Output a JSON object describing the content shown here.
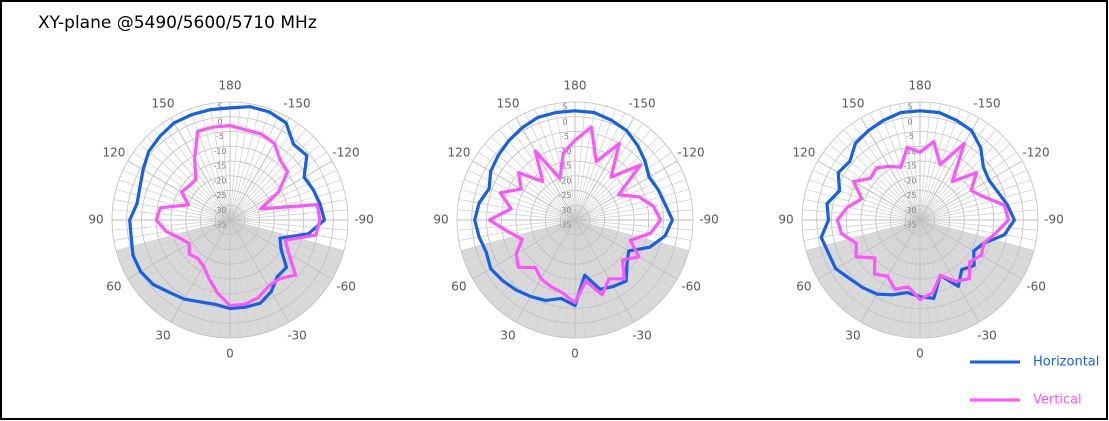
{
  "title": "XY-plane @5490/5600/5710 MHz",
  "chart_data": [
    {
      "type": "polar",
      "theta": [
        -180,
        -170,
        -160,
        -150,
        -140,
        -130,
        -120,
        -110,
        -100,
        -90,
        -80,
        -70,
        -60,
        -50,
        -40,
        -30,
        -20,
        -10,
        0,
        10,
        20,
        30,
        40,
        50,
        60,
        70,
        80,
        90,
        100,
        110,
        120,
        130,
        140,
        150,
        160,
        170
      ],
      "thetaticks": [
        180,
        -150,
        -120,
        -90,
        -60,
        -30,
        0,
        30,
        60,
        90,
        120,
        150
      ],
      "rlim": [
        -35,
        5
      ],
      "rticks": [
        5,
        0,
        -5,
        -10,
        -15,
        -20,
        -25,
        -30,
        -35
      ],
      "series": [
        {
          "color": "#1560e8",
          "values": [
            3,
            4,
            4,
            3,
            -1.5,
            -1,
            -6,
            -5,
            -4,
            -3,
            -8,
            -17,
            -15,
            -10,
            -10,
            -7,
            -5,
            -5,
            -5,
            -6,
            -5.5,
            -4,
            -3,
            -1,
            0,
            0,
            -1,
            -1,
            -3,
            -2.5,
            -1,
            1,
            2,
            3,
            3,
            3
          ]
        },
        {
          "color": "#ff55ff",
          "values": [
            -3,
            -4,
            -4,
            -5,
            -8.5,
            -9.5,
            -16,
            -24,
            -5,
            -4.5,
            -5.5,
            -15,
            -12,
            -6,
            -9,
            -9,
            -7,
            -6,
            -6,
            -10,
            -14,
            -17,
            -18,
            -17,
            -19,
            -17,
            -13,
            -10,
            -11,
            -20,
            -16,
            -17,
            -17,
            -11,
            -3,
            -3
          ]
        }
      ]
    },
    {
      "type": "polar",
      "theta": [
        -180,
        -170,
        -160,
        -150,
        -140,
        -130,
        -120,
        -110,
        -100,
        -90,
        -80,
        -70,
        -60,
        -50,
        -40,
        -30,
        -20,
        -10,
        0,
        10,
        20,
        30,
        40,
        50,
        60,
        70,
        80,
        90,
        100,
        110,
        120,
        130,
        140,
        150,
        160,
        170
      ],
      "thetaticks": [
        180,
        -150,
        -120,
        -90,
        -60,
        -30,
        0,
        30,
        60,
        90,
        120,
        150
      ],
      "rlim": [
        -35,
        5
      ],
      "rticks": [
        5,
        0,
        -5,
        -10,
        -15,
        -20,
        -25,
        -30,
        -35
      ],
      "series": [
        {
          "color": "#1560e8",
          "values": [
            2,
            2,
            1,
            0,
            -2,
            -4,
            -6,
            -5,
            -4,
            -2,
            -4,
            -8,
            -14,
            -12,
            -8,
            -9,
            -10,
            -16,
            -6,
            -8,
            -6,
            -5,
            -4,
            -3,
            -2,
            -3,
            -2,
            -1,
            -2,
            -4,
            -2,
            -1,
            0,
            1,
            2,
            2
          ]
        },
        {
          "color": "#ff55ff",
          "values": [
            -8,
            -3,
            -14,
            -5,
            -16,
            -6,
            -18,
            -12,
            -8,
            -6,
            -9,
            -15,
            -10,
            -14,
            -9,
            -12,
            -8,
            -14,
            -7,
            -10,
            -11,
            -12,
            -14,
            -10,
            -12,
            -16,
            -12,
            -6,
            -13,
            -8,
            -14,
            -10,
            -18,
            -8,
            -20,
            -12
          ]
        }
      ]
    },
    {
      "type": "polar",
      "theta": [
        -180,
        -170,
        -160,
        -150,
        -140,
        -130,
        -120,
        -110,
        -100,
        -90,
        -80,
        -70,
        -60,
        -50,
        -40,
        -30,
        -20,
        -10,
        0,
        10,
        20,
        30,
        40,
        50,
        60,
        70,
        80,
        90,
        100,
        110,
        120,
        130,
        140,
        150,
        160,
        170
      ],
      "thetaticks": [
        180,
        -150,
        -120,
        -90,
        -60,
        -30,
        0,
        30,
        60,
        90,
        120,
        150
      ],
      "rlim": [
        -35,
        5
      ],
      "rticks": [
        5,
        0,
        -5,
        -10,
        -15,
        -20,
        -25,
        -30,
        -35
      ],
      "series": [
        {
          "name": "Horizontal",
          "color": "#1560e8",
          "values": [
            2,
            2,
            1,
            0,
            -3,
            -7,
            -8,
            -7,
            -5,
            -3,
            -6,
            -12,
            -14,
            -11,
            -13,
            -9,
            -15,
            -8,
            -9,
            -10,
            -8,
            -6,
            -5,
            -4,
            -2,
            -2,
            -1,
            -4,
            -3,
            -6,
            -3,
            -4,
            -1,
            0,
            1,
            2
          ]
        },
        {
          "name": "Vertical",
          "color": "#ff55ff",
          "values": [
            -12,
            -8,
            -15,
            -5,
            -18,
            -10,
            -15,
            -12,
            -6,
            -5,
            -9,
            -12,
            -11,
            -13,
            -9,
            -11,
            -15,
            -10,
            -8,
            -12,
            -10,
            -13,
            -11,
            -15,
            -10,
            -12,
            -8,
            -7,
            -10,
            -14,
            -9,
            -13,
            -12,
            -14,
            -16,
            -10
          ]
        }
      ]
    }
  ]
}
